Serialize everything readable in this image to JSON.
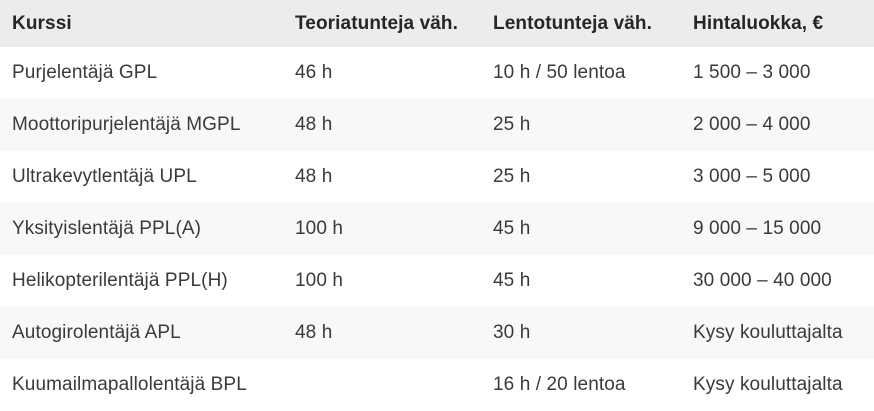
{
  "table": {
    "columns": [
      {
        "label": "Kurssi"
      },
      {
        "label": "Teoriatunteja väh."
      },
      {
        "label": "Lentotunteja väh."
      },
      {
        "label": "Hintaluokka, €"
      }
    ],
    "rows": [
      {
        "kurssi": "Purjelentäjä GPL",
        "teoriatunteja": "46 h",
        "lentotunteja": "10 h / 50 lentoa",
        "hintaluokka": "1 500 – 3 000"
      },
      {
        "kurssi": "Moottoripurjelentäjä MGPL",
        "teoriatunteja": "48 h",
        "lentotunteja": "25 h",
        "hintaluokka": "2 000 – 4 000"
      },
      {
        "kurssi": "Ultrakevytlentäjä UPL",
        "teoriatunteja": "48 h",
        "lentotunteja": "25 h",
        "hintaluokka": "3 000 – 5 000"
      },
      {
        "kurssi": "Yksityislentäjä PPL(A)",
        "teoriatunteja": "100 h",
        "lentotunteja": "45 h",
        "hintaluokka": "9 000 – 15 000"
      },
      {
        "kurssi": "Helikopterilentäjä PPL(H)",
        "teoriatunteja": "100 h",
        "lentotunteja": "45 h",
        "hintaluokka": "30 000 – 40 000"
      },
      {
        "kurssi": "Autogirolentäjä APL",
        "teoriatunteja": "48 h",
        "lentotunteja": "30 h",
        "hintaluokka": "Kysy kouluttajalta"
      },
      {
        "kurssi": "Kuumailmapallolentäjä BPL",
        "teoriatunteja": "",
        "lentotunteja": "16 h / 20 lentoa",
        "hintaluokka": "Kysy kouluttajalta"
      }
    ]
  },
  "colors": {
    "header_bg": "#ececec",
    "stripe_bg": "#f8f8f8",
    "row_bg": "#ffffff",
    "header_text": "#26262a",
    "body_text": "#3a3a3e"
  }
}
